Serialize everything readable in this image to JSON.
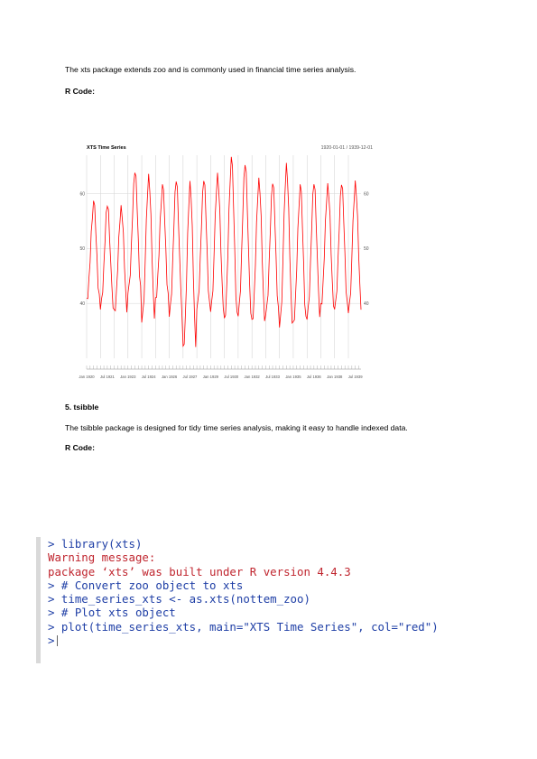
{
  "page": {
    "intro_text": "The xts package extends zoo and is commonly used in financial time series analysis.",
    "r_code_label_1": "R Code:",
    "section_heading": "5. tsibble",
    "tsibble_text": "The tsibble package is designed for tidy time series analysis, making it easy to handle indexed data.",
    "r_code_label_2": "R Code:"
  },
  "chart_data": {
    "type": "line",
    "title": "XTS Time Series",
    "date_range_label": "1920-01-01 / 1939-12-01",
    "color": "#ff0000",
    "ylim": [
      30,
      67
    ],
    "y_ticks": [
      "40",
      "50",
      "60"
    ],
    "y_tick_values": [
      40,
      50,
      60
    ],
    "x_tick_labels": [
      "Jan 1920",
      "Jul 1921",
      "Jan 1923",
      "Jul 1924",
      "Jan 1926",
      "Jul 1927",
      "Jan 1929",
      "Jul 1930",
      "Jan 1932",
      "Jul 1933",
      "Jan 1935",
      "Jul 1936",
      "Jan 1938",
      "Jul 1939"
    ],
    "x_start": "1920-01",
    "x_end": "1939-12",
    "yearly_peaks": [
      58.5,
      58,
      57.5,
      64,
      63.3,
      61.5,
      62.5,
      61.9,
      62.5,
      63.5,
      66.5,
      65.5,
      62.5,
      62,
      65.3,
      61.5,
      62,
      61.5,
      61.8,
      62.1
    ],
    "yearly_troughs": [
      40,
      38.5,
      38,
      41,
      36,
      40,
      37,
      31,
      38,
      38,
      36,
      37,
      36,
      37,
      35,
      35.5,
      36.5,
      39,
      38,
      37.8
    ],
    "grid": true
  },
  "console": {
    "lines": [
      {
        "text": "> library(xts)",
        "kind": "cmd"
      },
      {
        "text": "Warning message:",
        "kind": "err"
      },
      {
        "text": "package ‘xts’ was built under R version 4.4.3",
        "kind": "err"
      },
      {
        "text": "> # Convert zoo object to xts",
        "kind": "cmd"
      },
      {
        "text": "> time_series_xts <- as.xts(nottem_zoo)",
        "kind": "cmd"
      },
      {
        "text": "> # Plot xts object",
        "kind": "cmd"
      },
      {
        "text": "> plot(time_series_xts, main=\"XTS Time Series\", col=\"red\")",
        "kind": "cmd"
      },
      {
        "text": ">",
        "kind": "prompt"
      }
    ]
  }
}
